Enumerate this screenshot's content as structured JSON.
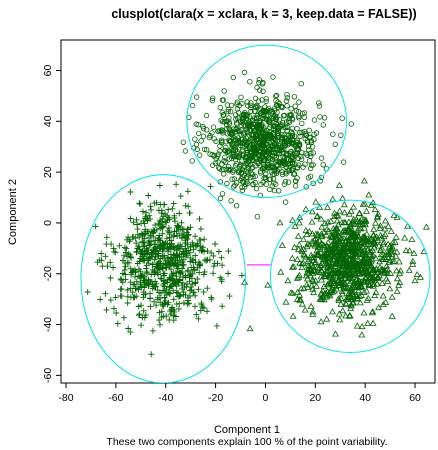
{
  "chart_data": {
    "type": "scatter",
    "title": "clusplot(clara(x = xclara, k = 3, keep.data = FALSE))",
    "xlabel": "Component 1",
    "ylabel": "Component 2",
    "caption": "These two components explain 100 % of the point variability.",
    "xlim": [
      -82,
      68
    ],
    "ylim": [
      -63,
      72
    ],
    "xticks": [
      -80,
      -60,
      -40,
      -20,
      0,
      20,
      40,
      60
    ],
    "yticks": [
      -60,
      -40,
      -20,
      0,
      20,
      40,
      60
    ],
    "point_color": "#006400",
    "ellipse_color": "#00e5ee",
    "line_color": "#ff00ff",
    "clusters": [
      {
        "id": 1,
        "marker": "circle",
        "center": [
          -1,
          32
        ],
        "spread": [
          11,
          9
        ],
        "n": 900,
        "ellipse": {
          "cx": 0.5,
          "cy": 40,
          "rx": 32,
          "ry": 30
        }
      },
      {
        "id": 2,
        "marker": "triangle",
        "center": [
          33,
          -15
        ],
        "spread": [
          10,
          9.5
        ],
        "n": 900,
        "ellipse": {
          "cx": 34,
          "cy": -21,
          "rx": 32,
          "ry": 30
        }
      },
      {
        "id": 3,
        "marker": "plus",
        "center": [
          -41,
          -16
        ],
        "spread": [
          10,
          11
        ],
        "n": 700,
        "ellipse": {
          "cx": -41,
          "cy": -22,
          "rx": 33,
          "ry": 41
        }
      }
    ],
    "connector": {
      "x1": -7.5,
      "y1": -16.5,
      "x2": 2,
      "y2": -16.5
    }
  }
}
